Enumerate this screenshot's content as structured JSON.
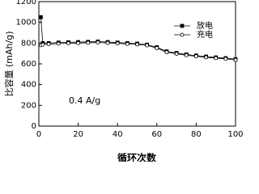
{
  "chart_data": {
    "type": "line",
    "xlabel": "循环次数",
    "ylabel": "比容量 (mAh/g)",
    "annotation": "0.4 A/g",
    "x": [
      1,
      2,
      5,
      10,
      15,
      20,
      25,
      30,
      35,
      40,
      45,
      50,
      55,
      60,
      65,
      70,
      75,
      80,
      85,
      90,
      95,
      100
    ],
    "series": [
      {
        "name": "放电",
        "color": "#000000",
        "marker": "square",
        "marker_filled": true,
        "values": [
          1050,
          800,
          800,
          805,
          808,
          810,
          812,
          815,
          810,
          805,
          800,
          795,
          785,
          760,
          720,
          705,
          690,
          680,
          670,
          662,
          655,
          645
        ]
      },
      {
        "name": "充电",
        "color": "#000000",
        "marker": "circle",
        "marker_filled": false,
        "values": [
          780,
          785,
          790,
          795,
          798,
          800,
          803,
          806,
          802,
          797,
          792,
          787,
          778,
          752,
          712,
          697,
          683,
          673,
          663,
          655,
          648,
          638
        ]
      }
    ],
    "xlim": [
      0,
      100
    ],
    "xticks": [
      0,
      20,
      40,
      60,
      80,
      100
    ],
    "ylim": [
      0,
      1200
    ],
    "yticks": [
      0,
      200,
      400,
      600,
      800,
      1000,
      1200
    ],
    "legend": "upper right"
  }
}
